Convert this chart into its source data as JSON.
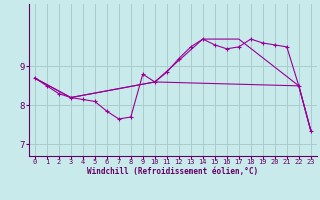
{
  "xlabel": "Windchill (Refroidissement éolien,°C)",
  "bg_color": "#c8eaea",
  "line_color": "#990099",
  "grid_color": "#aacccc",
  "axis_color": "#660066",
  "xlim": [
    -0.5,
    23.5
  ],
  "ylim": [
    6.7,
    10.6
  ],
  "xticks": [
    0,
    1,
    2,
    3,
    4,
    5,
    6,
    7,
    8,
    9,
    10,
    11,
    12,
    13,
    14,
    15,
    16,
    17,
    18,
    19,
    20,
    21,
    22,
    23
  ],
  "yticks": [
    7,
    8,
    9
  ],
  "line1_x": [
    0,
    1,
    2,
    3,
    4,
    5,
    6,
    7,
    8,
    9,
    10,
    11,
    12,
    13,
    14,
    15,
    16,
    17,
    18,
    19,
    20,
    21,
    22,
    23
  ],
  "line1_y": [
    8.7,
    8.5,
    8.3,
    8.2,
    8.15,
    8.1,
    7.85,
    7.65,
    7.7,
    8.8,
    8.6,
    8.85,
    9.2,
    9.5,
    9.7,
    9.55,
    9.45,
    9.5,
    9.7,
    9.6,
    9.55,
    9.5,
    8.5,
    7.35
  ],
  "line2_x": [
    0,
    3,
    10,
    22,
    23
  ],
  "line2_y": [
    8.7,
    8.2,
    8.6,
    8.5,
    7.35
  ],
  "line3_x": [
    0,
    3,
    10,
    14,
    17,
    22,
    23
  ],
  "line3_y": [
    8.7,
    8.2,
    8.6,
    9.7,
    9.7,
    8.5,
    7.35
  ]
}
